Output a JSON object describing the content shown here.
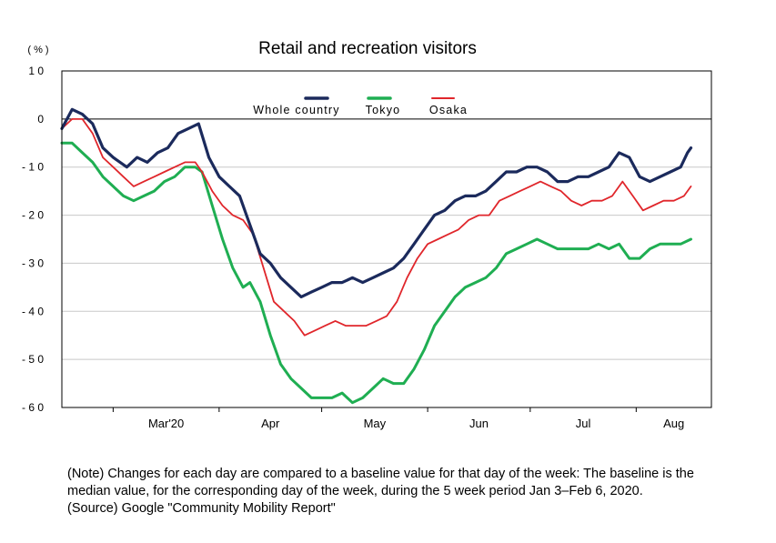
{
  "chart_data": {
    "type": "line",
    "title": "Retail and recreation visitors",
    "unit_label": "( % )",
    "ylim": [
      -60,
      10
    ],
    "yticks": [
      10,
      0,
      -10,
      -20,
      -30,
      -40,
      -50,
      -60
    ],
    "ytick_labels": [
      "1 0",
      "0",
      "- 1 0",
      "- 2 0",
      "- 3 0",
      "- 4 0",
      "- 5 0",
      "- 6 0"
    ],
    "xlim": [
      "2020-02-15",
      "2020-08-23"
    ],
    "month_labels": [
      {
        "label": "Mar'20",
        "date": "2020-03-01"
      },
      {
        "label": "Apr",
        "date": "2020-04-01"
      },
      {
        "label": "May",
        "date": "2020-05-01"
      },
      {
        "label": "Jun",
        "date": "2020-06-01"
      },
      {
        "label": "Jul",
        "date": "2020-07-01"
      },
      {
        "label": "Aug",
        "date": "2020-08-01"
      }
    ],
    "grid": true,
    "legend_position": "top",
    "series": [
      {
        "name": "Whole country",
        "color": "#1b2a5c",
        "points": [
          [
            "2020-02-15",
            -2
          ],
          [
            "2020-02-18",
            2
          ],
          [
            "2020-02-21",
            1
          ],
          [
            "2020-02-24",
            -1
          ],
          [
            "2020-02-27",
            -6
          ],
          [
            "2020-03-01",
            -8
          ],
          [
            "2020-03-05",
            -10
          ],
          [
            "2020-03-08",
            -8
          ],
          [
            "2020-03-11",
            -9
          ],
          [
            "2020-03-14",
            -7
          ],
          [
            "2020-03-17",
            -6
          ],
          [
            "2020-03-20",
            -3
          ],
          [
            "2020-03-23",
            -2
          ],
          [
            "2020-03-26",
            -1
          ],
          [
            "2020-03-29",
            -8
          ],
          [
            "2020-04-01",
            -12
          ],
          [
            "2020-04-04",
            -14
          ],
          [
            "2020-04-07",
            -16
          ],
          [
            "2020-04-10",
            -22
          ],
          [
            "2020-04-13",
            -28
          ],
          [
            "2020-04-16",
            -30
          ],
          [
            "2020-04-19",
            -33
          ],
          [
            "2020-04-22",
            -35
          ],
          [
            "2020-04-25",
            -37
          ],
          [
            "2020-04-28",
            -36
          ],
          [
            "2020-05-01",
            -35
          ],
          [
            "2020-05-04",
            -34
          ],
          [
            "2020-05-07",
            -34
          ],
          [
            "2020-05-10",
            -33
          ],
          [
            "2020-05-13",
            -34
          ],
          [
            "2020-05-16",
            -33
          ],
          [
            "2020-05-19",
            -32
          ],
          [
            "2020-05-22",
            -31
          ],
          [
            "2020-05-25",
            -29
          ],
          [
            "2020-05-28",
            -26
          ],
          [
            "2020-05-31",
            -23
          ],
          [
            "2020-06-03",
            -20
          ],
          [
            "2020-06-06",
            -19
          ],
          [
            "2020-06-09",
            -17
          ],
          [
            "2020-06-12",
            -16
          ],
          [
            "2020-06-15",
            -16
          ],
          [
            "2020-06-18",
            -15
          ],
          [
            "2020-06-21",
            -13
          ],
          [
            "2020-06-24",
            -11
          ],
          [
            "2020-06-27",
            -11
          ],
          [
            "2020-06-30",
            -10
          ],
          [
            "2020-07-03",
            -10
          ],
          [
            "2020-07-06",
            -11
          ],
          [
            "2020-07-09",
            -13
          ],
          [
            "2020-07-12",
            -13
          ],
          [
            "2020-07-15",
            -12
          ],
          [
            "2020-07-18",
            -12
          ],
          [
            "2020-07-21",
            -11
          ],
          [
            "2020-07-24",
            -10
          ],
          [
            "2020-07-27",
            -7
          ],
          [
            "2020-07-30",
            -8
          ],
          [
            "2020-08-02",
            -12
          ],
          [
            "2020-08-05",
            -13
          ],
          [
            "2020-08-08",
            -12
          ],
          [
            "2020-08-11",
            -11
          ],
          [
            "2020-08-14",
            -10
          ],
          [
            "2020-08-16",
            -7
          ],
          [
            "2020-08-17",
            -6
          ]
        ]
      },
      {
        "name": "Tokyo",
        "color": "#1fae52",
        "points": [
          [
            "2020-02-15",
            -5
          ],
          [
            "2020-02-18",
            -5
          ],
          [
            "2020-02-21",
            -7
          ],
          [
            "2020-02-24",
            -9
          ],
          [
            "2020-02-27",
            -12
          ],
          [
            "2020-03-01",
            -14
          ],
          [
            "2020-03-04",
            -16
          ],
          [
            "2020-03-07",
            -17
          ],
          [
            "2020-03-10",
            -16
          ],
          [
            "2020-03-13",
            -15
          ],
          [
            "2020-03-16",
            -13
          ],
          [
            "2020-03-19",
            -12
          ],
          [
            "2020-03-22",
            -10
          ],
          [
            "2020-03-25",
            -10
          ],
          [
            "2020-03-27",
            -11
          ],
          [
            "2020-03-30",
            -18
          ],
          [
            "2020-04-02",
            -25
          ],
          [
            "2020-04-05",
            -31
          ],
          [
            "2020-04-08",
            -35
          ],
          [
            "2020-04-10",
            -34
          ],
          [
            "2020-04-13",
            -38
          ],
          [
            "2020-04-16",
            -45
          ],
          [
            "2020-04-19",
            -51
          ],
          [
            "2020-04-22",
            -54
          ],
          [
            "2020-04-25",
            -56
          ],
          [
            "2020-04-28",
            -58
          ],
          [
            "2020-05-01",
            -58
          ],
          [
            "2020-05-04",
            -58
          ],
          [
            "2020-05-07",
            -57
          ],
          [
            "2020-05-10",
            -59
          ],
          [
            "2020-05-13",
            -58
          ],
          [
            "2020-05-16",
            -56
          ],
          [
            "2020-05-19",
            -54
          ],
          [
            "2020-05-22",
            -55
          ],
          [
            "2020-05-25",
            -55
          ],
          [
            "2020-05-28",
            -52
          ],
          [
            "2020-05-31",
            -48
          ],
          [
            "2020-06-03",
            -43
          ],
          [
            "2020-06-06",
            -40
          ],
          [
            "2020-06-09",
            -37
          ],
          [
            "2020-06-12",
            -35
          ],
          [
            "2020-06-15",
            -34
          ],
          [
            "2020-06-18",
            -33
          ],
          [
            "2020-06-21",
            -31
          ],
          [
            "2020-06-24",
            -28
          ],
          [
            "2020-06-27",
            -27
          ],
          [
            "2020-06-30",
            -26
          ],
          [
            "2020-07-03",
            -25
          ],
          [
            "2020-07-06",
            -26
          ],
          [
            "2020-07-09",
            -27
          ],
          [
            "2020-07-12",
            -27
          ],
          [
            "2020-07-15",
            -27
          ],
          [
            "2020-07-18",
            -27
          ],
          [
            "2020-07-21",
            -26
          ],
          [
            "2020-07-24",
            -27
          ],
          [
            "2020-07-27",
            -26
          ],
          [
            "2020-07-30",
            -29
          ],
          [
            "2020-08-02",
            -29
          ],
          [
            "2020-08-05",
            -27
          ],
          [
            "2020-08-08",
            -26
          ],
          [
            "2020-08-11",
            -26
          ],
          [
            "2020-08-14",
            -26
          ],
          [
            "2020-08-17",
            -25
          ]
        ]
      },
      {
        "name": "Osaka",
        "color": "#e0262b",
        "points": [
          [
            "2020-02-15",
            -2
          ],
          [
            "2020-02-18",
            0
          ],
          [
            "2020-02-21",
            0
          ],
          [
            "2020-02-24",
            -3
          ],
          [
            "2020-02-27",
            -8
          ],
          [
            "2020-03-01",
            -10
          ],
          [
            "2020-03-04",
            -12
          ],
          [
            "2020-03-07",
            -14
          ],
          [
            "2020-03-10",
            -13
          ],
          [
            "2020-03-13",
            -12
          ],
          [
            "2020-03-16",
            -11
          ],
          [
            "2020-03-19",
            -10
          ],
          [
            "2020-03-22",
            -9
          ],
          [
            "2020-03-25",
            -9
          ],
          [
            "2020-03-27",
            -11
          ],
          [
            "2020-03-30",
            -15
          ],
          [
            "2020-04-02",
            -18
          ],
          [
            "2020-04-05",
            -20
          ],
          [
            "2020-04-08",
            -21
          ],
          [
            "2020-04-11",
            -24
          ],
          [
            "2020-04-14",
            -31
          ],
          [
            "2020-04-17",
            -38
          ],
          [
            "2020-04-20",
            -40
          ],
          [
            "2020-04-23",
            -42
          ],
          [
            "2020-04-26",
            -45
          ],
          [
            "2020-04-29",
            -44
          ],
          [
            "2020-05-02",
            -43
          ],
          [
            "2020-05-05",
            -42
          ],
          [
            "2020-05-08",
            -43
          ],
          [
            "2020-05-11",
            -43
          ],
          [
            "2020-05-14",
            -43
          ],
          [
            "2020-05-17",
            -42
          ],
          [
            "2020-05-20",
            -41
          ],
          [
            "2020-05-23",
            -38
          ],
          [
            "2020-05-26",
            -33
          ],
          [
            "2020-05-29",
            -29
          ],
          [
            "2020-06-01",
            -26
          ],
          [
            "2020-06-04",
            -25
          ],
          [
            "2020-06-07",
            -24
          ],
          [
            "2020-06-10",
            -23
          ],
          [
            "2020-06-13",
            -21
          ],
          [
            "2020-06-16",
            -20
          ],
          [
            "2020-06-19",
            -20
          ],
          [
            "2020-06-22",
            -17
          ],
          [
            "2020-06-25",
            -16
          ],
          [
            "2020-06-28",
            -15
          ],
          [
            "2020-07-01",
            -14
          ],
          [
            "2020-07-04",
            -13
          ],
          [
            "2020-07-07",
            -14
          ],
          [
            "2020-07-10",
            -15
          ],
          [
            "2020-07-13",
            -17
          ],
          [
            "2020-07-16",
            -18
          ],
          [
            "2020-07-19",
            -17
          ],
          [
            "2020-07-22",
            -17
          ],
          [
            "2020-07-25",
            -16
          ],
          [
            "2020-07-28",
            -13
          ],
          [
            "2020-07-31",
            -16
          ],
          [
            "2020-08-03",
            -19
          ],
          [
            "2020-08-06",
            -18
          ],
          [
            "2020-08-09",
            -17
          ],
          [
            "2020-08-12",
            -17
          ],
          [
            "2020-08-15",
            -16
          ],
          [
            "2020-08-17",
            -14
          ]
        ]
      }
    ]
  },
  "notes": {
    "line1": "(Note)  Changes for each day are compared to a baseline value for that day of the week: The baseline is the",
    "line2": "median value, for the corresponding day of the week, during the 5 week period Jan 3–Feb 6, 2020.",
    "line3": "(Source) Google \"Community Mobility Report\""
  }
}
